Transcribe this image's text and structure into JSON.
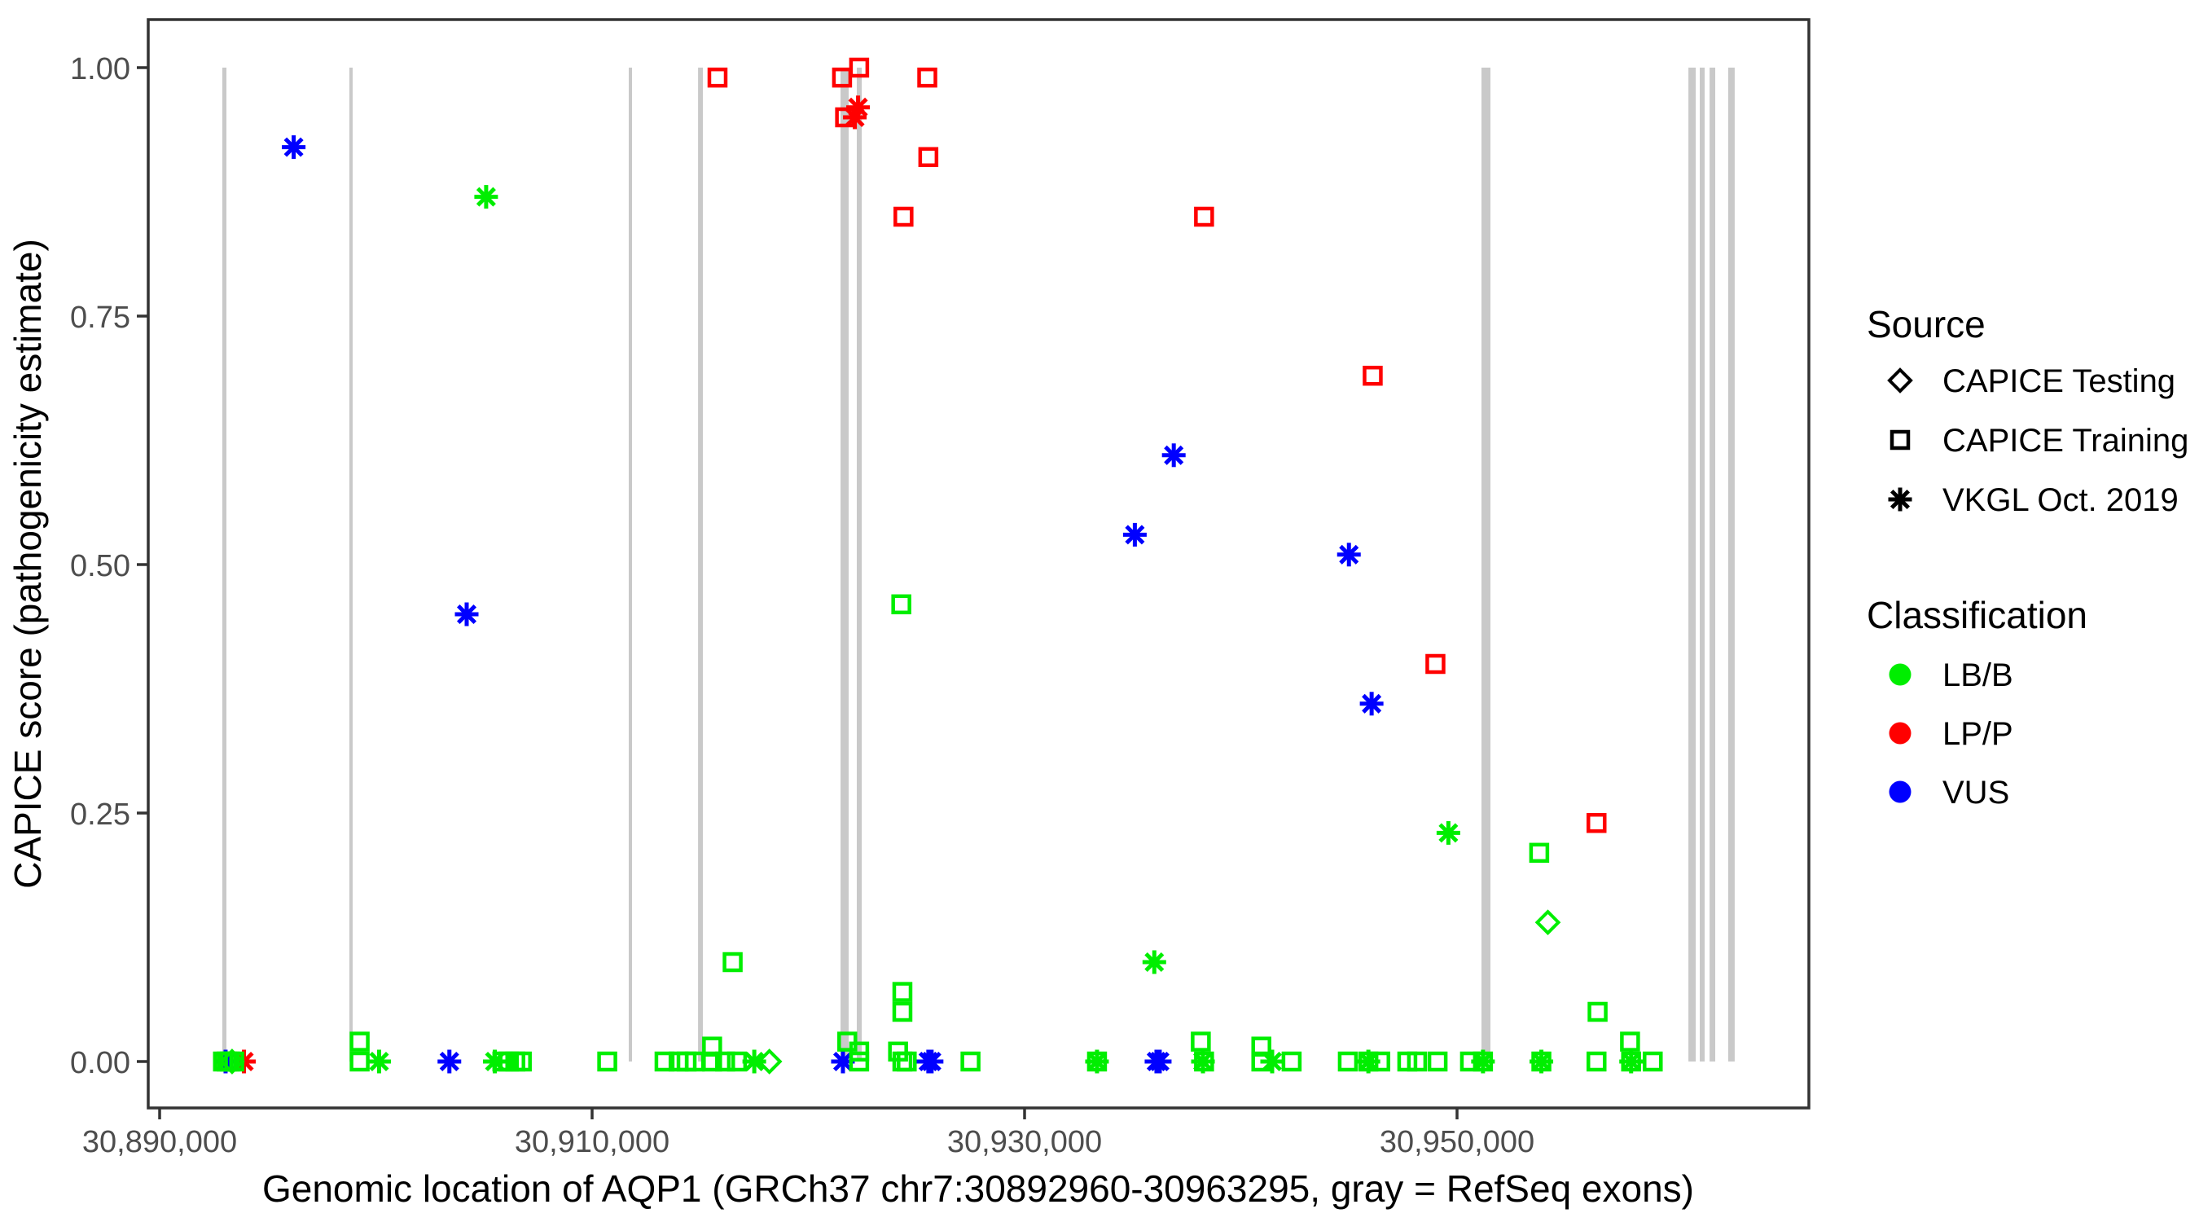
{
  "chart_data": {
    "type": "scatter",
    "xlabel": "Genomic location of AQP1 (GRCh37 chr7:30892960-30963295, gray = RefSeq exons)",
    "ylabel": "CAPICE score (pathogenicity estimate)",
    "xlim": [
      30889450,
      30966800
    ],
    "ylim": [
      0,
      1
    ],
    "grid": "off",
    "x_ticks": [
      {
        "value": 30890000,
        "label": "30,890,000"
      },
      {
        "value": 30910000,
        "label": "30,910,000"
      },
      {
        "value": 30930000,
        "label": "30,930,000"
      },
      {
        "value": 30950000,
        "label": "30,950,000"
      }
    ],
    "y_ticks": [
      {
        "value": 0.0,
        "label": "0.00"
      },
      {
        "value": 0.25,
        "label": "0.25"
      },
      {
        "value": 0.5,
        "label": "0.50"
      },
      {
        "value": 0.75,
        "label": "0.75"
      },
      {
        "value": 1.0,
        "label": "1.00"
      }
    ],
    "exons_note": "gray vertical bars = RefSeq exons, genomic start/end",
    "exons": [
      {
        "start": 30892900,
        "end": 30893090
      },
      {
        "start": 30898775,
        "end": 30898925
      },
      {
        "start": 30911695,
        "end": 30911845
      },
      {
        "start": 30914900,
        "end": 30915125
      },
      {
        "start": 30921490,
        "end": 30921865
      },
      {
        "start": 30922240,
        "end": 30922470
      },
      {
        "start": 30951130,
        "end": 30951545
      },
      {
        "start": 30960700,
        "end": 30961040
      },
      {
        "start": 30961225,
        "end": 30961450
      },
      {
        "start": 30961680,
        "end": 30961940
      },
      {
        "start": 30962540,
        "end": 30962840
      }
    ],
    "series": [
      {
        "name": "CAPICE Training / LP/P",
        "source": "CAPICE Training",
        "classification": "LP/P",
        "shape": "square",
        "color": "#ff0000",
        "points": [
          [
            30915800,
            0.99
          ],
          [
            30921560,
            0.99
          ],
          [
            30922350,
            1.0
          ],
          [
            30925500,
            0.99
          ],
          [
            30921700,
            0.95
          ],
          [
            30925550,
            0.91
          ],
          [
            30924400,
            0.85
          ],
          [
            30938300,
            0.85
          ],
          [
            30946100,
            0.69
          ],
          [
            30949000,
            0.4
          ],
          [
            30956450,
            0.24
          ]
        ]
      },
      {
        "name": "VKGL Oct. 2019 / LP/P",
        "source": "VKGL Oct. 2019",
        "classification": "LP/P",
        "shape": "asterisk",
        "color": "#ff0000",
        "points": [
          [
            30922300,
            0.96
          ],
          [
            30922150,
            0.95
          ],
          [
            30893900,
            0.0
          ]
        ]
      },
      {
        "name": "VKGL Oct. 2019 / VUS",
        "source": "VKGL Oct. 2019",
        "classification": "VUS",
        "shape": "asterisk",
        "color": "#0000ff",
        "points": [
          [
            30896200,
            0.92
          ],
          [
            30936900,
            0.61
          ],
          [
            30935100,
            0.53
          ],
          [
            30945000,
            0.51
          ],
          [
            30904200,
            0.45
          ],
          [
            30946050,
            0.36
          ],
          [
            30893050,
            0.0
          ],
          [
            30903400,
            0.0
          ],
          [
            30921600,
            0.0
          ],
          [
            30925550,
            0.0
          ],
          [
            30925700,
            0.0
          ],
          [
            30936100,
            0.0
          ],
          [
            30936250,
            0.0
          ]
        ]
      },
      {
        "name": "VKGL Oct. 2019 / LB/B",
        "source": "VKGL Oct. 2019",
        "classification": "LB/B",
        "shape": "asterisk",
        "color": "#00ee00",
        "points": [
          [
            30905100,
            0.87
          ],
          [
            30949600,
            0.23
          ],
          [
            30936000,
            0.1
          ],
          [
            30900150,
            0.0
          ],
          [
            30905500,
            0.0
          ],
          [
            30917500,
            0.0
          ],
          [
            30933350,
            0.0
          ],
          [
            30938250,
            0.0
          ],
          [
            30941450,
            0.0
          ],
          [
            30945900,
            0.0
          ],
          [
            30951200,
            0.0
          ],
          [
            30953900,
            0.0
          ],
          [
            30958050,
            0.0
          ]
        ]
      },
      {
        "name": "CAPICE Testing / LB/B",
        "source": "CAPICE Testing",
        "classification": "LB/B",
        "shape": "diamond",
        "color": "#00ee00",
        "points": [
          [
            30954200,
            0.14
          ],
          [
            30918200,
            0.0
          ],
          [
            30893350,
            0.0
          ]
        ]
      },
      {
        "name": "CAPICE Training / LB/B",
        "source": "CAPICE Training",
        "classification": "LB/B",
        "shape": "square",
        "color": "#00ee00",
        "points": [
          [
            30924300,
            0.46
          ],
          [
            30953800,
            0.21
          ],
          [
            30916500,
            0.1
          ],
          [
            30924350,
            0.07
          ],
          [
            30924350,
            0.05
          ],
          [
            30956500,
            0.05
          ],
          [
            30958000,
            0.02
          ],
          [
            30899250,
            0.02
          ],
          [
            30899250,
            0.0
          ],
          [
            30892930,
            0.0
          ],
          [
            30893100,
            0.0
          ],
          [
            30893250,
            0.0
          ],
          [
            30893450,
            0.0
          ],
          [
            30905850,
            0.0
          ],
          [
            30906150,
            0.0
          ],
          [
            30906450,
            0.0
          ],
          [
            30906750,
            0.0
          ],
          [
            30910700,
            0.0
          ],
          [
            30913350,
            0.0
          ],
          [
            30914000,
            0.0
          ],
          [
            30914370,
            0.0
          ],
          [
            30914750,
            0.0
          ],
          [
            30915550,
            0.015
          ],
          [
            30915550,
            0.0
          ],
          [
            30916150,
            0.0
          ],
          [
            30916700,
            0.0
          ],
          [
            30921800,
            0.02
          ],
          [
            30922350,
            0.01
          ],
          [
            30922350,
            0.0
          ],
          [
            30924150,
            0.01
          ],
          [
            30924350,
            0.0
          ],
          [
            30924550,
            0.0
          ],
          [
            30927500,
            0.0
          ],
          [
            30933350,
            0.0
          ],
          [
            30938150,
            0.02
          ],
          [
            30938300,
            0.0
          ],
          [
            30940950,
            0.015
          ],
          [
            30940950,
            0.0
          ],
          [
            30942350,
            0.0
          ],
          [
            30944950,
            0.0
          ],
          [
            30945900,
            0.0
          ],
          [
            30946450,
            0.0
          ],
          [
            30947700,
            0.0
          ],
          [
            30948150,
            0.0
          ],
          [
            30949100,
            0.0
          ],
          [
            30950600,
            0.0
          ],
          [
            30951200,
            0.0
          ],
          [
            30953900,
            0.0
          ],
          [
            30956450,
            0.0
          ],
          [
            30958050,
            0.0
          ],
          [
            30959050,
            0.0
          ]
        ]
      }
    ]
  },
  "legend": {
    "source": {
      "title": "Source",
      "items": [
        {
          "label": "CAPICE Testing",
          "shape": "diamond"
        },
        {
          "label": "CAPICE Training",
          "shape": "square"
        },
        {
          "label": "VKGL Oct. 2019",
          "shape": "asterisk"
        }
      ]
    },
    "classification": {
      "title": "Classification",
      "items": [
        {
          "label": "LB/B",
          "color": "#00ee00"
        },
        {
          "label": "LP/P",
          "color": "#ff0000"
        },
        {
          "label": "VUS",
          "color": "#0000ff"
        }
      ]
    }
  },
  "colors": {
    "lb_b": "#00ee00",
    "lp_p": "#ff0000",
    "vus": "#0000ff",
    "exon_bar": "#c9c9c9",
    "axis_tick_text": "#4d4d4d",
    "panel_border": "#333333",
    "background": "#ffffff"
  }
}
